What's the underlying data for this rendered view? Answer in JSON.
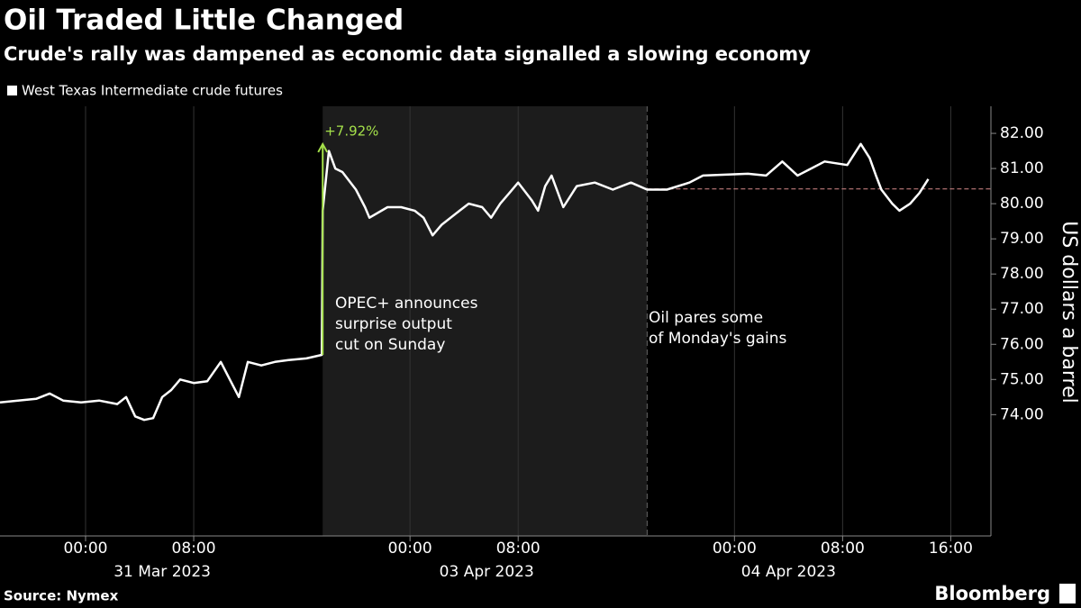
{
  "chart_data": {
    "type": "line",
    "title": "Oil Traded Little Changed",
    "subtitle": "Crude's rally was dampened as economic data signalled a slowing economy",
    "x": [
      0,
      1.33,
      2.67,
      3.67,
      4.67,
      6,
      7.33,
      8.67,
      9.33,
      10,
      10.67,
      11.33,
      12,
      12.67,
      13.33,
      14.33,
      15.33,
      16.33,
      17,
      17.67,
      18.33,
      19.33,
      20.33,
      21.33,
      22.67,
      23.8,
      23.87,
      24.33,
      24.8,
      25.33,
      26.33,
      27,
      27.33,
      28.67,
      29.67,
      30.67,
      31.33,
      32,
      32.67,
      34,
      34.67,
      35.67,
      36.33,
      37,
      37.67,
      38.33,
      39.33,
      39.8,
      40.33,
      40.8,
      41.67,
      42.67,
      44,
      45.33,
      46.67,
      47.87,
      49.33,
      51,
      52,
      55.33,
      56.67,
      57.87,
      59,
      60,
      61,
      62.67,
      63.67,
      64.33,
      64.8,
      65.2,
      66,
      66.53,
      67.33,
      68,
      68.67
    ],
    "series": [
      {
        "name": "West Texas Intermediate crude futures",
        "color": "#ffffff",
        "values": [
          74.35,
          74.4,
          74.45,
          74.6,
          74.4,
          74.35,
          74.4,
          74.3,
          74.5,
          73.95,
          73.85,
          73.9,
          74.5,
          74.7,
          75.0,
          74.9,
          74.95,
          75.5,
          75.0,
          74.5,
          75.5,
          75.4,
          75.5,
          75.55,
          75.6,
          75.7,
          79.8,
          81.5,
          81.0,
          80.9,
          80.4,
          79.9,
          79.6,
          79.9,
          79.9,
          79.8,
          79.6,
          79.1,
          79.4,
          79.8,
          80.0,
          79.9,
          79.6,
          80.0,
          80.3,
          80.6,
          80.1,
          79.8,
          80.5,
          80.8,
          79.9,
          80.5,
          80.6,
          80.4,
          80.6,
          80.4,
          80.4,
          80.6,
          80.8,
          80.85,
          80.8,
          81.2,
          80.8,
          81.0,
          81.2,
          81.1,
          81.7,
          81.3,
          80.8,
          80.4,
          80.0,
          79.8,
          80.0,
          80.3,
          80.7
        ]
      }
    ],
    "xlim": [
      0,
      73.3
    ],
    "xticks": [
      {
        "value": 6.33,
        "label": "00:00"
      },
      {
        "value": 14.33,
        "label": "08:00"
      },
      {
        "value": 30.33,
        "label": "00:00"
      },
      {
        "value": 38.33,
        "label": "08:00"
      },
      {
        "value": 54.33,
        "label": "00:00"
      },
      {
        "value": 62.33,
        "label": "08:00"
      },
      {
        "value": 70.33,
        "label": "16:00"
      }
    ],
    "date_labels": [
      {
        "value": 12,
        "label": "31 Mar 2023"
      },
      {
        "value": 36,
        "label": "03 Apr 2023"
      },
      {
        "value": 58.33,
        "label": "04 Apr 2023"
      }
    ],
    "ylim": [
      70.55,
      82.77
    ],
    "yticks": [
      {
        "value": 74,
        "label": "74.00"
      },
      {
        "value": 75,
        "label": "75.00"
      },
      {
        "value": 76,
        "label": "76.00"
      },
      {
        "value": 77,
        "label": "77.00"
      },
      {
        "value": 78,
        "label": "78.00"
      },
      {
        "value": 79,
        "label": "79.00"
      },
      {
        "value": 80,
        "label": "80.00"
      },
      {
        "value": 81,
        "label": "81.00"
      },
      {
        "value": 82,
        "label": "82.00"
      }
    ],
    "y_label": "US dollars a barrel",
    "shaded_region": [
      23.87,
      47.87
    ],
    "reference_line": 80.42,
    "change_annotation": {
      "label": "+7.92%",
      "value": 7.92,
      "color": "#a4e04a"
    },
    "annotations": [
      {
        "lines": [
          "OPEC+ announces",
          "surprise output",
          "cut on Sunday"
        ]
      },
      {
        "lines": [
          "Oil pares some",
          "of Monday's gains"
        ]
      }
    ],
    "source": "Source: Nymex",
    "brand": "Bloomberg"
  }
}
